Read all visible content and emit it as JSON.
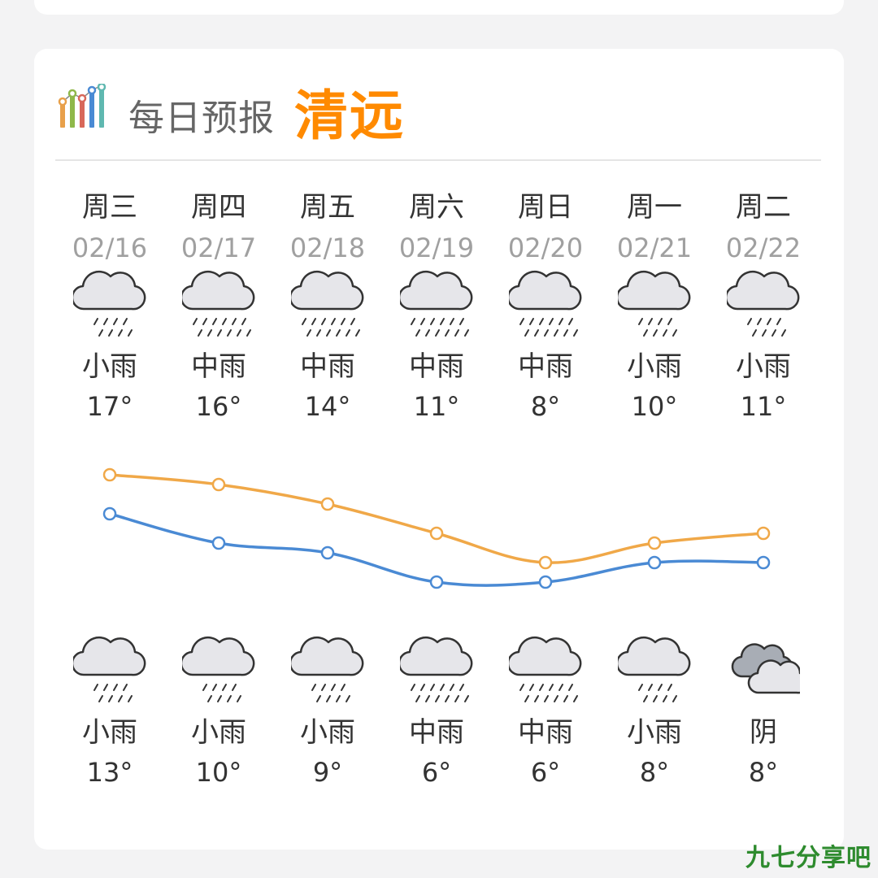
{
  "header": {
    "label": "每日预报",
    "city": "清远",
    "logo_icon": "bar-chart-logo-icon"
  },
  "days": [
    {
      "weekday": "周三",
      "date": "02/16",
      "day_cond": "小雨",
      "day_icon": "light-rain-icon",
      "high": "17°",
      "night_cond": "小雨",
      "night_icon": "light-rain-icon",
      "low": "13°"
    },
    {
      "weekday": "周四",
      "date": "02/17",
      "day_cond": "中雨",
      "day_icon": "moderate-rain-icon",
      "high": "16°",
      "night_cond": "小雨",
      "night_icon": "light-rain-icon",
      "low": "10°"
    },
    {
      "weekday": "周五",
      "date": "02/18",
      "day_cond": "中雨",
      "day_icon": "moderate-rain-icon",
      "high": "14°",
      "night_cond": "小雨",
      "night_icon": "light-rain-icon",
      "low": "9°"
    },
    {
      "weekday": "周六",
      "date": "02/19",
      "day_cond": "中雨",
      "day_icon": "moderate-rain-icon",
      "high": "11°",
      "night_cond": "中雨",
      "night_icon": "moderate-rain-icon",
      "low": "6°"
    },
    {
      "weekday": "周日",
      "date": "02/20",
      "day_cond": "中雨",
      "day_icon": "moderate-rain-icon",
      "high": "8°",
      "night_cond": "中雨",
      "night_icon": "moderate-rain-icon",
      "low": "6°"
    },
    {
      "weekday": "周一",
      "date": "02/21",
      "day_cond": "小雨",
      "day_icon": "light-rain-icon",
      "high": "10°",
      "night_cond": "小雨",
      "night_icon": "light-rain-icon",
      "low": "8°"
    },
    {
      "weekday": "周二",
      "date": "02/22",
      "day_cond": "小雨",
      "day_icon": "light-rain-icon",
      "high": "11°",
      "night_cond": "阴",
      "night_icon": "overcast-icon",
      "low": "8°"
    }
  ],
  "chart_data": {
    "type": "line",
    "x": [
      "02/16",
      "02/17",
      "02/18",
      "02/19",
      "02/20",
      "02/21",
      "02/22"
    ],
    "series": [
      {
        "values": [
          17,
          16,
          14,
          11,
          8,
          10,
          11
        ],
        "color": "#f0a848"
      },
      {
        "values": [
          13,
          10,
          9,
          6,
          6,
          8,
          8
        ],
        "color": "#4a8ad4"
      }
    ],
    "ylim": [
      4,
      19
    ],
    "grid": false
  },
  "colors": {
    "accent": "#ff8a00",
    "high_line": "#f0a848",
    "low_line": "#4a8ad4",
    "watermark": "#2e8b2e"
  },
  "watermark": "九七分享吧"
}
